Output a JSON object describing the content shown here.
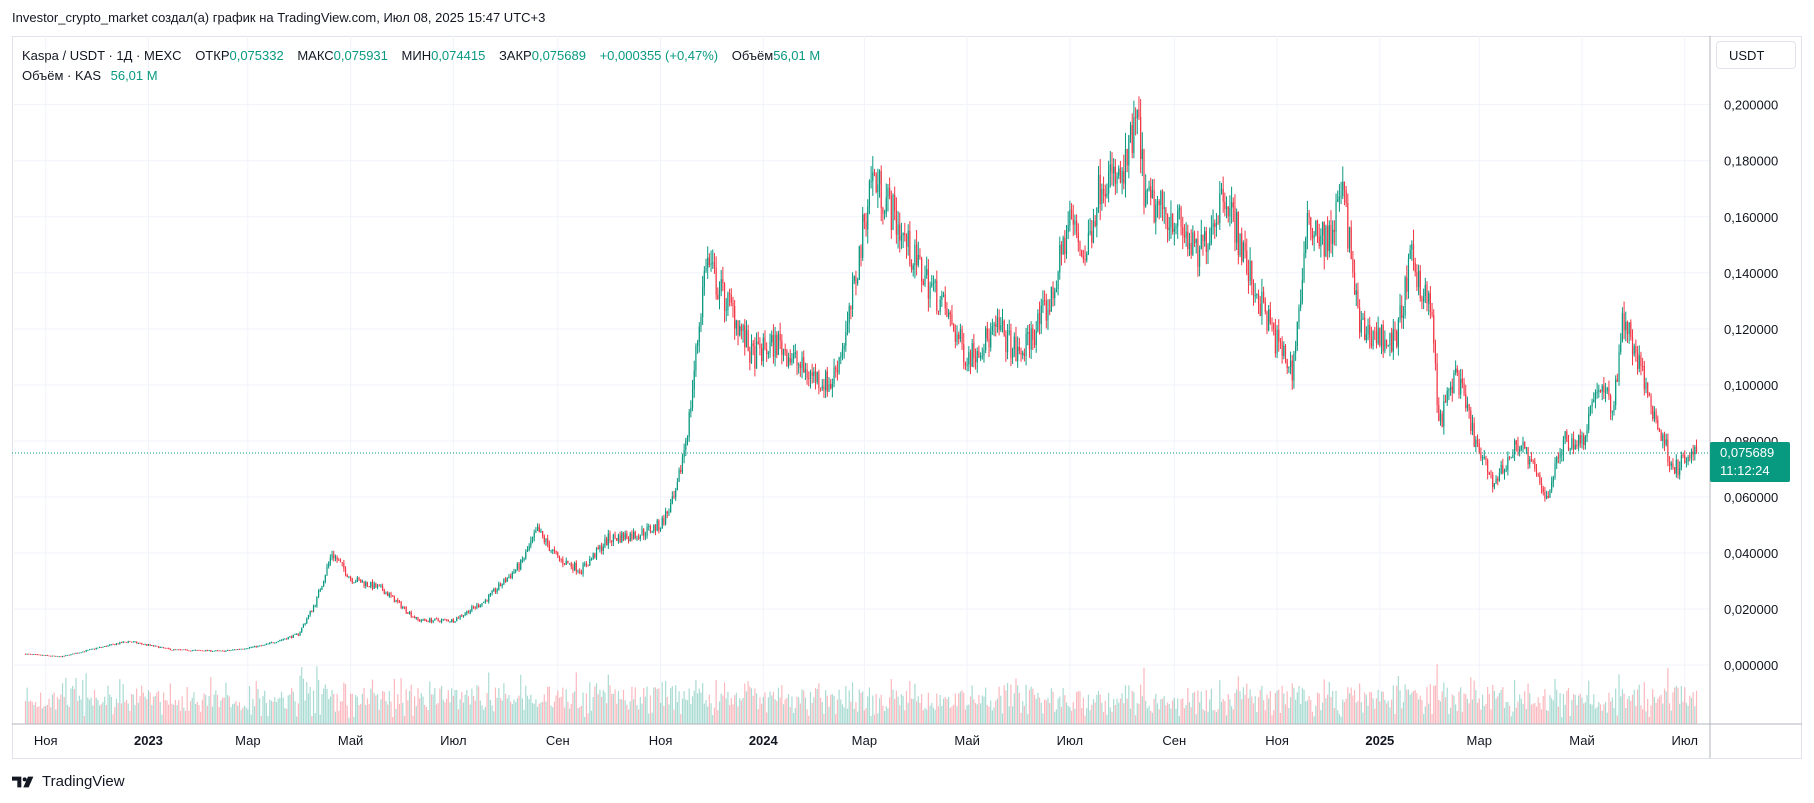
{
  "header": {
    "caption": "Investor_crypto_market создал(а) график на TradingView.com, Июл 08, 2025 15:47 UTC+3"
  },
  "legend": {
    "symbol": "Kaspa / USDT · 1Д · MEXC",
    "open_label": "ОТКР",
    "open_value": "0,075332",
    "high_label": "МАКС",
    "high_value": "0,075931",
    "low_label": "МИН",
    "low_value": "0,074415",
    "close_label": "ЗАКР",
    "close_value": "0,075689",
    "change_value": "+0,000355 (+0,47%)",
    "volume_label": "Объём",
    "volume_value": "56,01 M",
    "volume_row_label": "Объём · KAS",
    "volume_row_value": "56,01 M"
  },
  "toolbar": {
    "currency_label": "USDT"
  },
  "price_tag": {
    "price": "0,075689",
    "countdown": "11:12:24"
  },
  "brand": {
    "name": "TradingView"
  },
  "colors": {
    "up": "#089981",
    "down": "#f23645",
    "grid": "#f0f3fa",
    "axis_border": "#b2b5be"
  },
  "chart_data": {
    "type": "candlestick",
    "title": "",
    "interval": "1Д",
    "y_ticks": [
      0,
      0.02,
      0.04,
      0.06,
      0.08,
      0.1,
      0.12,
      0.14,
      0.16,
      0.18,
      0.2
    ],
    "y_tick_labels": [
      "0,000000",
      "0,020000",
      "0,040000",
      "0,060000",
      "0,080000",
      "0,100000",
      "0,120000",
      "0,140000",
      "0,160000",
      "0,180000",
      "0,200000"
    ],
    "ylim": [
      -0.021,
      0.2245
    ],
    "x_range": [
      "2022-10-12",
      "2025-07-16"
    ],
    "x_ticks": [
      {
        "date": "2022-11-01",
        "label": "Ноя",
        "bold": false
      },
      {
        "date": "2023-01-01",
        "label": "2023",
        "bold": true
      },
      {
        "date": "2023-03-01",
        "label": "Мар",
        "bold": false
      },
      {
        "date": "2023-05-01",
        "label": "Май",
        "bold": false
      },
      {
        "date": "2023-07-01",
        "label": "Июл",
        "bold": false
      },
      {
        "date": "2023-09-01",
        "label": "Сен",
        "bold": false
      },
      {
        "date": "2023-11-01",
        "label": "Ноя",
        "bold": false
      },
      {
        "date": "2024-01-01",
        "label": "2024",
        "bold": true
      },
      {
        "date": "2024-03-01",
        "label": "Мар",
        "bold": false
      },
      {
        "date": "2024-05-01",
        "label": "Май",
        "bold": false
      },
      {
        "date": "2024-07-01",
        "label": "Июл",
        "bold": false
      },
      {
        "date": "2024-09-01",
        "label": "Сен",
        "bold": false
      },
      {
        "date": "2024-11-01",
        "label": "Ноя",
        "bold": false
      },
      {
        "date": "2025-01-01",
        "label": "2025",
        "bold": true
      },
      {
        "date": "2025-03-01",
        "label": "Мар",
        "bold": false
      },
      {
        "date": "2025-05-01",
        "label": "Май",
        "bold": false
      },
      {
        "date": "2025-07-01",
        "label": "Июл",
        "bold": false
      }
    ],
    "approx_close_path": [
      [
        "2022-10-20",
        0.004
      ],
      [
        "2022-11-10",
        0.003
      ],
      [
        "2022-12-01",
        0.006
      ],
      [
        "2022-12-20",
        0.0085
      ],
      [
        "2023-01-15",
        0.0055
      ],
      [
        "2023-02-15",
        0.005
      ],
      [
        "2023-03-10",
        0.007
      ],
      [
        "2023-03-31",
        0.011
      ],
      [
        "2023-04-10",
        0.022
      ],
      [
        "2023-04-20",
        0.04
      ],
      [
        "2023-05-01",
        0.031
      ],
      [
        "2023-05-20",
        0.027
      ],
      [
        "2023-06-10",
        0.016
      ],
      [
        "2023-07-01",
        0.016
      ],
      [
        "2023-07-20",
        0.023
      ],
      [
        "2023-08-10",
        0.036
      ],
      [
        "2023-08-20",
        0.048
      ],
      [
        "2023-09-01",
        0.038
      ],
      [
        "2023-09-15",
        0.034
      ],
      [
        "2023-10-01",
        0.045
      ],
      [
        "2023-10-20",
        0.047
      ],
      [
        "2023-11-01",
        0.05
      ],
      [
        "2023-11-10",
        0.06
      ],
      [
        "2023-11-18",
        0.088
      ],
      [
        "2023-11-28",
        0.145
      ],
      [
        "2023-12-05",
        0.135
      ],
      [
        "2023-12-15",
        0.125
      ],
      [
        "2023-12-25",
        0.11
      ],
      [
        "2024-01-10",
        0.115
      ],
      [
        "2024-01-25",
        0.105
      ],
      [
        "2024-02-10",
        0.1
      ],
      [
        "2024-02-20",
        0.12
      ],
      [
        "2024-02-28",
        0.15
      ],
      [
        "2024-03-05",
        0.175
      ],
      [
        "2024-03-15",
        0.165
      ],
      [
        "2024-03-30",
        0.145
      ],
      [
        "2024-04-15",
        0.13
      ],
      [
        "2024-05-01",
        0.11
      ],
      [
        "2024-05-20",
        0.12
      ],
      [
        "2024-06-01",
        0.11
      ],
      [
        "2024-06-20",
        0.13
      ],
      [
        "2024-07-01",
        0.16
      ],
      [
        "2024-07-10",
        0.145
      ],
      [
        "2024-07-20",
        0.175
      ],
      [
        "2024-08-01",
        0.172
      ],
      [
        "2024-08-10",
        0.195
      ],
      [
        "2024-08-15",
        0.165
      ],
      [
        "2024-09-01",
        0.16
      ],
      [
        "2024-09-15",
        0.145
      ],
      [
        "2024-10-01",
        0.17
      ],
      [
        "2024-10-15",
        0.14
      ],
      [
        "2024-11-01",
        0.115
      ],
      [
        "2024-11-10",
        0.105
      ],
      [
        "2024-11-20",
        0.16
      ],
      [
        "2024-12-01",
        0.15
      ],
      [
        "2024-12-10",
        0.17
      ],
      [
        "2024-12-20",
        0.12
      ],
      [
        "2025-01-10",
        0.115
      ],
      [
        "2025-01-20",
        0.145
      ],
      [
        "2025-02-01",
        0.125
      ],
      [
        "2025-02-05",
        0.085
      ],
      [
        "2025-02-15",
        0.105
      ],
      [
        "2025-03-01",
        0.075
      ],
      [
        "2025-03-10",
        0.065
      ],
      [
        "2025-03-25",
        0.08
      ],
      [
        "2025-04-10",
        0.06
      ],
      [
        "2025-04-20",
        0.08
      ],
      [
        "2025-05-01",
        0.08
      ],
      [
        "2025-05-10",
        0.1
      ],
      [
        "2025-05-20",
        0.092
      ],
      [
        "2025-05-25",
        0.125
      ],
      [
        "2025-06-05",
        0.105
      ],
      [
        "2025-06-15",
        0.085
      ],
      [
        "2025-06-25",
        0.07
      ],
      [
        "2025-07-08",
        0.0757
      ]
    ]
  }
}
